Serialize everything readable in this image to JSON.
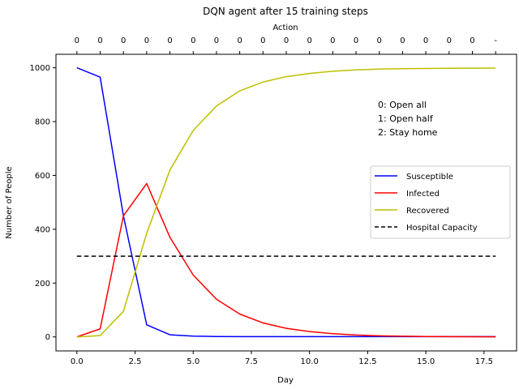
{
  "chart_data": {
    "type": "line",
    "title": "DQN agent after 15 training steps",
    "xlabel": "Day",
    "ylabel": "Number of People",
    "top_axis_label": "Action",
    "top_tick_labels": [
      "0",
      "0",
      "0",
      "0",
      "0",
      "0",
      "0",
      "0",
      "0",
      "0",
      "0",
      "0",
      "0",
      "0",
      "0",
      "0",
      "0",
      "0",
      "-"
    ],
    "xlim": [
      -0.9,
      18.9
    ],
    "ylim": [
      -52,
      1050
    ],
    "xticks": [
      0.0,
      2.5,
      5.0,
      7.5,
      10.0,
      12.5,
      15.0,
      17.5
    ],
    "xtick_labels": [
      "0.0",
      "2.5",
      "5.0",
      "7.5",
      "10.0",
      "12.5",
      "15.0",
      "17.5"
    ],
    "yticks": [
      0,
      200,
      400,
      600,
      800,
      1000
    ],
    "ytick_labels": [
      "0",
      "200",
      "400",
      "600",
      "800",
      "1000"
    ],
    "x": [
      0,
      1,
      2,
      3,
      4,
      5,
      6,
      7,
      8,
      9,
      10,
      11,
      12,
      13,
      14,
      15,
      16,
      17,
      18
    ],
    "series": [
      {
        "name": "Susceptible",
        "color": "#0000ff",
        "dash": "solid",
        "values": [
          1000,
          965,
          450,
          45,
          8,
          3,
          1.5,
          1,
          1,
          1,
          1,
          1,
          1,
          1,
          1,
          1,
          1,
          1,
          1
        ]
      },
      {
        "name": "Infected",
        "color": "#ff0000",
        "dash": "solid",
        "values": [
          0,
          30,
          450,
          570,
          370,
          230,
          140,
          85,
          52,
          32,
          20,
          12,
          7,
          4,
          2.5,
          1.5,
          1,
          0.5,
          0.3
        ]
      },
      {
        "name": "Recovered",
        "color": "#bfbf00",
        "dash": "solid",
        "values": [
          0,
          5,
          95,
          385,
          620,
          767,
          858,
          914,
          947,
          967,
          979,
          987,
          992,
          995,
          996.5,
          997.5,
          998,
          998.5,
          999
        ]
      },
      {
        "name": "Hospital Capacity",
        "color": "#000000",
        "dash": "dashed",
        "values": [
          300,
          300,
          300,
          300,
          300,
          300,
          300,
          300,
          300,
          300,
          300,
          300,
          300,
          300,
          300,
          300,
          300,
          300,
          300
        ]
      }
    ],
    "legend_position": "center-right",
    "annotation": [
      "0: Open all",
      "1: Open half",
      "2: Stay home"
    ],
    "grid": false
  }
}
